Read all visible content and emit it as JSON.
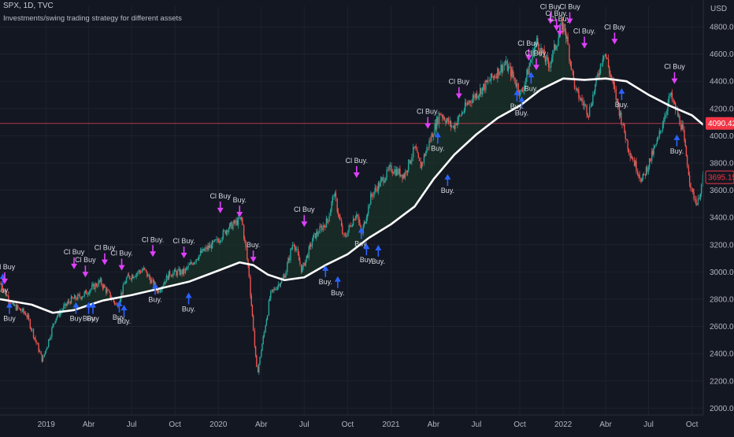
{
  "header": {
    "symbol_line": "SPX, 1D, TVC",
    "strategy_title": "Investments/swing trading strategy for different assets"
  },
  "colors": {
    "background": "#131722",
    "grid": "#1e222d",
    "candle_up": "#26a69a",
    "candle_down": "#ef5350",
    "ma_line": "#ffffff",
    "entry_arrow": "#2962ff",
    "exit_arrow": "#e040fb",
    "fill_zone": "#1b3a2a",
    "price_line": "#b0384a",
    "last_price_tag": "#f23645"
  },
  "price_axis": {
    "currency": "USD",
    "last_price": "4090.42",
    "current_price": "3695.15"
  },
  "chart_data": {
    "type": "line",
    "title": "",
    "xlabel": "",
    "ylabel": "",
    "ylim": [
      1950,
      4950
    ],
    "grid": true,
    "y_ticks": [
      "2000.00",
      "2200.00",
      "2400.00",
      "2600.00",
      "2800.00",
      "3000.00",
      "3200.00",
      "3400.00",
      "3600.00",
      "3800.00",
      "4000.00",
      "4200.00",
      "4400.00",
      "4600.00",
      "4800.00"
    ],
    "x_ticks": [
      {
        "label": "2019",
        "x": "2019-01-01"
      },
      {
        "label": "Abr",
        "x": "2019-04-01"
      },
      {
        "label": "Jul",
        "x": "2019-07-01"
      },
      {
        "label": "Oct",
        "x": "2019-10-01"
      },
      {
        "label": "2020",
        "x": "2020-01-01"
      },
      {
        "label": "Abr",
        "x": "2020-04-01"
      },
      {
        "label": "Jul",
        "x": "2020-07-01"
      },
      {
        "label": "Oct",
        "x": "2020-10-01"
      },
      {
        "label": "2021",
        "x": "2021-01-01"
      },
      {
        "label": "Abr",
        "x": "2021-04-01"
      },
      {
        "label": "Jul",
        "x": "2021-07-01"
      },
      {
        "label": "Oct",
        "x": "2021-10-01"
      },
      {
        "label": "2022",
        "x": "2022-01-01"
      },
      {
        "label": "Abr",
        "x": "2022-04-01"
      },
      {
        "label": "Jul",
        "x": "2022-07-01"
      },
      {
        "label": "Oct",
        "x": "2022-10-01"
      }
    ],
    "x_range": [
      "2018-09-25",
      "2022-10-25"
    ],
    "series": [
      {
        "role": "price",
        "points": [
          [
            "2018-09-25",
            2920
          ],
          [
            "2018-10-20",
            2760
          ],
          [
            "2018-11-20",
            2690
          ],
          [
            "2018-12-24",
            2350
          ],
          [
            "2019-01-20",
            2660
          ],
          [
            "2019-02-20",
            2790
          ],
          [
            "2019-03-20",
            2830
          ],
          [
            "2019-04-25",
            2930
          ],
          [
            "2019-05-31",
            2750
          ],
          [
            "2019-06-20",
            2950
          ],
          [
            "2019-07-26",
            3020
          ],
          [
            "2019-08-26",
            2860
          ],
          [
            "2019-09-20",
            2990
          ],
          [
            "2019-10-20",
            3000
          ],
          [
            "2019-11-25",
            3140
          ],
          [
            "2019-12-31",
            3230
          ],
          [
            "2020-01-20",
            3320
          ],
          [
            "2020-02-19",
            3390
          ],
          [
            "2020-03-05",
            3020
          ],
          [
            "2020-03-23",
            2240
          ],
          [
            "2020-04-20",
            2830
          ],
          [
            "2020-05-20",
            2970
          ],
          [
            "2020-06-08",
            3230
          ],
          [
            "2020-06-26",
            3010
          ],
          [
            "2020-07-20",
            3250
          ],
          [
            "2020-08-20",
            3380
          ],
          [
            "2020-09-02",
            3580
          ],
          [
            "2020-09-23",
            3240
          ],
          [
            "2020-10-20",
            3440
          ],
          [
            "2020-10-30",
            3270
          ],
          [
            "2020-11-20",
            3560
          ],
          [
            "2020-12-31",
            3760
          ],
          [
            "2021-01-29",
            3710
          ],
          [
            "2021-02-20",
            3910
          ],
          [
            "2021-03-04",
            3770
          ],
          [
            "2021-04-15",
            4170
          ],
          [
            "2021-05-12",
            4060
          ],
          [
            "2021-06-15",
            4250
          ],
          [
            "2021-07-20",
            4370
          ],
          [
            "2021-08-30",
            4530
          ],
          [
            "2021-09-15",
            4450
          ],
          [
            "2021-10-04",
            4300
          ],
          [
            "2021-11-05",
            4700
          ],
          [
            "2021-12-01",
            4510
          ],
          [
            "2021-12-28",
            4790
          ],
          [
            "2022-01-04",
            4800
          ],
          [
            "2022-01-27",
            4330
          ],
          [
            "2022-02-24",
            4170
          ],
          [
            "2022-03-29",
            4630
          ],
          [
            "2022-04-15",
            4390
          ],
          [
            "2022-05-20",
            3900
          ],
          [
            "2022-06-17",
            3670
          ],
          [
            "2022-07-20",
            3960
          ],
          [
            "2022-08-16",
            4300
          ],
          [
            "2022-09-10",
            4060
          ],
          [
            "2022-09-30",
            3590
          ],
          [
            "2022-10-13",
            3500
          ],
          [
            "2022-10-25",
            3700
          ]
        ]
      },
      {
        "role": "moving_average",
        "points": [
          [
            "2018-09-25",
            2800
          ],
          [
            "2018-12-01",
            2760
          ],
          [
            "2019-01-15",
            2700
          ],
          [
            "2019-03-01",
            2720
          ],
          [
            "2019-05-01",
            2790
          ],
          [
            "2019-07-01",
            2830
          ],
          [
            "2019-09-01",
            2880
          ],
          [
            "2019-11-01",
            2930
          ],
          [
            "2020-01-01",
            3010
          ],
          [
            "2020-02-15",
            3070
          ],
          [
            "2020-03-15",
            3050
          ],
          [
            "2020-04-15",
            2980
          ],
          [
            "2020-05-20",
            2940
          ],
          [
            "2020-07-01",
            2960
          ],
          [
            "2020-08-15",
            3050
          ],
          [
            "2020-10-01",
            3130
          ],
          [
            "2020-11-15",
            3250
          ],
          [
            "2021-01-01",
            3350
          ],
          [
            "2021-02-20",
            3480
          ],
          [
            "2021-04-01",
            3680
          ],
          [
            "2021-05-15",
            3860
          ],
          [
            "2021-07-01",
            4010
          ],
          [
            "2021-08-15",
            4130
          ],
          [
            "2021-10-01",
            4220
          ],
          [
            "2021-11-15",
            4340
          ],
          [
            "2022-01-01",
            4420
          ],
          [
            "2022-02-15",
            4410
          ],
          [
            "2022-04-01",
            4420
          ],
          [
            "2022-05-15",
            4400
          ],
          [
            "2022-07-01",
            4300
          ],
          [
            "2022-08-15",
            4220
          ],
          [
            "2022-10-01",
            4150
          ],
          [
            "2022-10-25",
            4080
          ]
        ]
      }
    ],
    "reference_lines": [
      {
        "price": 4090,
        "label": "4090.42"
      }
    ],
    "signals": [
      {
        "label": "Buy.",
        "date": "2018-10-01",
        "price": 2850,
        "side": "below"
      },
      {
        "label": "Cl Buy",
        "date": "2018-10-05",
        "price": 3020,
        "side": "above"
      },
      {
        "label": "Buy",
        "date": "2018-10-15",
        "price": 2640,
        "side": "below"
      },
      {
        "label": "Cl Buy",
        "date": "2019-03-01",
        "price": 3130,
        "side": "above"
      },
      {
        "label": "Buy",
        "date": "2019-03-05",
        "price": 2640,
        "side": "below"
      },
      {
        "label": "Cl Buy",
        "date": "2019-03-25",
        "price": 3070,
        "side": "above"
      },
      {
        "label": "Buy",
        "date": "2019-04-01",
        "price": 2640,
        "side": "below"
      },
      {
        "label": "Buy",
        "date": "2019-04-10",
        "price": 2640,
        "side": "below"
      },
      {
        "label": "Cl Buy",
        "date": "2019-05-05",
        "price": 3160,
        "side": "above"
      },
      {
        "label": "Buy.",
        "date": "2019-06-05",
        "price": 2650,
        "side": "below"
      },
      {
        "label": "Cl Buy.",
        "date": "2019-06-10",
        "price": 3120,
        "side": "above"
      },
      {
        "label": "Buy.",
        "date": "2019-06-15",
        "price": 2620,
        "side": "below"
      },
      {
        "label": "Cl Buy.",
        "date": "2019-08-15",
        "price": 3220,
        "side": "above"
      },
      {
        "label": "Buy.",
        "date": "2019-08-20",
        "price": 2780,
        "side": "below"
      },
      {
        "label": "Cl Buy.",
        "date": "2019-10-20",
        "price": 3210,
        "side": "above"
      },
      {
        "label": "Buy.",
        "date": "2019-10-30",
        "price": 2710,
        "side": "below"
      },
      {
        "label": "Cl Buy",
        "date": "2020-01-05",
        "price": 3540,
        "side": "above"
      },
      {
        "label": "Buy.",
        "date": "2020-02-15",
        "price": 3510,
        "side": "above"
      },
      {
        "label": "Buy.",
        "date": "2020-03-15",
        "price": 3180,
        "side": "above"
      },
      {
        "label": "Cl Buy",
        "date": "2020-07-01",
        "price": 3440,
        "side": "above"
      },
      {
        "label": "Buy.",
        "date": "2020-08-15",
        "price": 2910,
        "side": "below"
      },
      {
        "label": "Buy.",
        "date": "2020-09-10",
        "price": 2830,
        "side": "below"
      },
      {
        "label": "Cl Buy.",
        "date": "2020-10-20",
        "price": 3800,
        "side": "above"
      },
      {
        "label": "Buy.",
        "date": "2020-10-30",
        "price": 3190,
        "side": "below"
      },
      {
        "label": "Buy.",
        "date": "2020-11-10",
        "price": 3070,
        "side": "below"
      },
      {
        "label": "Buy.",
        "date": "2020-12-05",
        "price": 3060,
        "side": "below"
      },
      {
        "label": "Cl Buy.",
        "date": "2021-03-20",
        "price": 4160,
        "side": "above"
      },
      {
        "label": "Buy.",
        "date": "2021-04-10",
        "price": 3890,
        "side": "below"
      },
      {
        "label": "Buy.",
        "date": "2021-05-01",
        "price": 3580,
        "side": "below"
      },
      {
        "label": "Cl Buy",
        "date": "2021-05-25",
        "price": 4380,
        "side": "above"
      },
      {
        "label": "Buy.",
        "date": "2021-09-25",
        "price": 4200,
        "side": "below"
      },
      {
        "label": "Buy.",
        "date": "2021-10-05",
        "price": 4150,
        "side": "below"
      },
      {
        "label": "Buy.",
        "date": "2021-10-25",
        "price": 4330,
        "side": "below"
      },
      {
        "label": "Cl Buy.",
        "date": "2021-10-20",
        "price": 4660,
        "side": "above"
      },
      {
        "label": "Cl Buy.",
        "date": "2021-11-05",
        "price": 4590,
        "side": "above"
      },
      {
        "label": "Cl Buy",
        "date": "2021-12-05",
        "price": 4930,
        "side": "above"
      },
      {
        "label": "Cl Buy.",
        "date": "2021-12-18",
        "price": 4880,
        "side": "above"
      },
      {
        "label": "Cl Buy",
        "date": "2021-12-25",
        "price": 4840,
        "side": "above"
      },
      {
        "label": "Cl Buy",
        "date": "2022-01-15",
        "price": 4930,
        "side": "above"
      },
      {
        "label": "Cl Buy.",
        "date": "2022-02-15",
        "price": 4750,
        "side": "above"
      },
      {
        "label": "Cl Buy",
        "date": "2022-04-20",
        "price": 4780,
        "side": "above"
      },
      {
        "label": "Buy.",
        "date": "2022-05-05",
        "price": 4210,
        "side": "below"
      },
      {
        "label": "Cl Buy",
        "date": "2022-08-25",
        "price": 4490,
        "side": "above"
      },
      {
        "label": "Buy.",
        "date": "2022-08-30",
        "price": 3870,
        "side": "below"
      }
    ]
  }
}
